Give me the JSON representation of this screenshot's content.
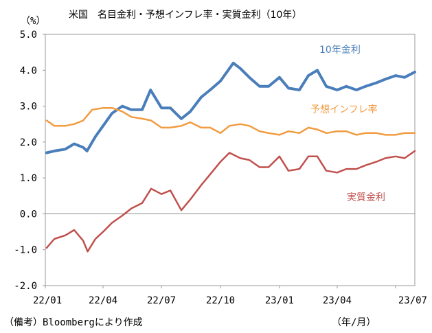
{
  "chart_data": {
    "type": "line",
    "title": "米国　名目金利・予想インフレ率・実質金利（10年）",
    "y_unit": "（%）",
    "x_unit": "（年/月）",
    "source_note": "（備考）Bloombergにより作成",
    "ylim": [
      -2.0,
      5.0
    ],
    "y_ticks": [
      "5.0",
      "4.0",
      "3.0",
      "2.0",
      "1.0",
      "0.0",
      "-1.0",
      "-2.0"
    ],
    "x_ticks": [
      "22/01",
      "22/04",
      "22/07",
      "22/10",
      "23/01",
      "23/04",
      "23/07"
    ],
    "grid": false,
    "zero_line": true,
    "series": [
      {
        "name": "10年金利",
        "color": "#4a7ebb",
        "x": [
          "2022-01-03",
          "2022-01-15",
          "2022-02-01",
          "2022-02-15",
          "2022-03-01",
          "2022-03-07",
          "2022-03-20",
          "2022-04-01",
          "2022-04-15",
          "2022-05-01",
          "2022-05-15",
          "2022-06-01",
          "2022-06-14",
          "2022-07-01",
          "2022-07-15",
          "2022-08-01",
          "2022-08-15",
          "2022-09-01",
          "2022-09-15",
          "2022-10-01",
          "2022-10-21",
          "2022-11-01",
          "2022-11-15",
          "2022-12-01",
          "2022-12-15",
          "2023-01-01",
          "2023-01-15",
          "2023-02-01",
          "2023-02-15",
          "2023-03-01",
          "2023-03-15",
          "2023-04-01",
          "2023-04-15",
          "2023-05-01",
          "2023-05-15",
          "2023-06-01",
          "2023-06-15",
          "2023-07-01",
          "2023-07-15",
          "2023-07-31"
        ],
        "values": [
          1.7,
          1.75,
          1.8,
          1.95,
          1.85,
          1.75,
          2.15,
          2.45,
          2.8,
          3.0,
          2.9,
          2.9,
          3.45,
          2.95,
          2.95,
          2.65,
          2.85,
          3.25,
          3.45,
          3.7,
          4.2,
          4.05,
          3.8,
          3.55,
          3.55,
          3.8,
          3.5,
          3.45,
          3.85,
          4.0,
          3.55,
          3.45,
          3.55,
          3.45,
          3.55,
          3.65,
          3.75,
          3.85,
          3.8,
          3.95
        ]
      },
      {
        "name": "予想インフレ率",
        "color": "#f29b40",
        "x": [
          "2022-01-03",
          "2022-01-15",
          "2022-02-01",
          "2022-02-15",
          "2022-03-01",
          "2022-03-15",
          "2022-04-01",
          "2022-04-15",
          "2022-05-01",
          "2022-05-15",
          "2022-06-01",
          "2022-06-15",
          "2022-07-01",
          "2022-07-15",
          "2022-08-01",
          "2022-08-15",
          "2022-09-01",
          "2022-09-15",
          "2022-10-01",
          "2022-10-15",
          "2022-11-01",
          "2022-11-15",
          "2022-12-01",
          "2022-12-15",
          "2023-01-01",
          "2023-01-15",
          "2023-02-01",
          "2023-02-15",
          "2023-03-01",
          "2023-03-15",
          "2023-04-01",
          "2023-04-15",
          "2023-05-01",
          "2023-05-15",
          "2023-06-01",
          "2023-06-15",
          "2023-07-01",
          "2023-07-15",
          "2023-07-31"
        ],
        "values": [
          2.6,
          2.45,
          2.45,
          2.5,
          2.6,
          2.9,
          2.95,
          2.95,
          2.85,
          2.7,
          2.65,
          2.6,
          2.4,
          2.4,
          2.45,
          2.55,
          2.4,
          2.4,
          2.25,
          2.45,
          2.5,
          2.45,
          2.3,
          2.25,
          2.2,
          2.3,
          2.25,
          2.4,
          2.35,
          2.25,
          2.3,
          2.3,
          2.2,
          2.25,
          2.25,
          2.2,
          2.2,
          2.25,
          2.25
        ]
      },
      {
        "name": "実質金利",
        "color": "#c0504d",
        "x": [
          "2022-01-03",
          "2022-01-15",
          "2022-02-01",
          "2022-02-15",
          "2022-03-01",
          "2022-03-08",
          "2022-03-20",
          "2022-04-01",
          "2022-04-15",
          "2022-05-01",
          "2022-05-15",
          "2022-06-01",
          "2022-06-15",
          "2022-07-01",
          "2022-07-15",
          "2022-08-01",
          "2022-08-15",
          "2022-09-01",
          "2022-09-15",
          "2022-10-01",
          "2022-10-15",
          "2022-11-01",
          "2022-11-15",
          "2022-12-01",
          "2022-12-15",
          "2023-01-01",
          "2023-01-15",
          "2023-02-01",
          "2023-02-15",
          "2023-03-01",
          "2023-03-15",
          "2023-04-01",
          "2023-04-15",
          "2023-05-01",
          "2023-05-15",
          "2023-06-01",
          "2023-06-15",
          "2023-07-01",
          "2023-07-15",
          "2023-07-31"
        ],
        "values": [
          -0.95,
          -0.7,
          -0.6,
          -0.45,
          -0.75,
          -1.05,
          -0.7,
          -0.5,
          -0.25,
          -0.05,
          0.15,
          0.3,
          0.7,
          0.55,
          0.65,
          0.1,
          0.4,
          0.8,
          1.1,
          1.45,
          1.7,
          1.55,
          1.5,
          1.3,
          1.3,
          1.6,
          1.2,
          1.25,
          1.6,
          1.6,
          1.2,
          1.15,
          1.25,
          1.25,
          1.35,
          1.45,
          1.55,
          1.6,
          1.55,
          1.75
        ]
      }
    ]
  }
}
